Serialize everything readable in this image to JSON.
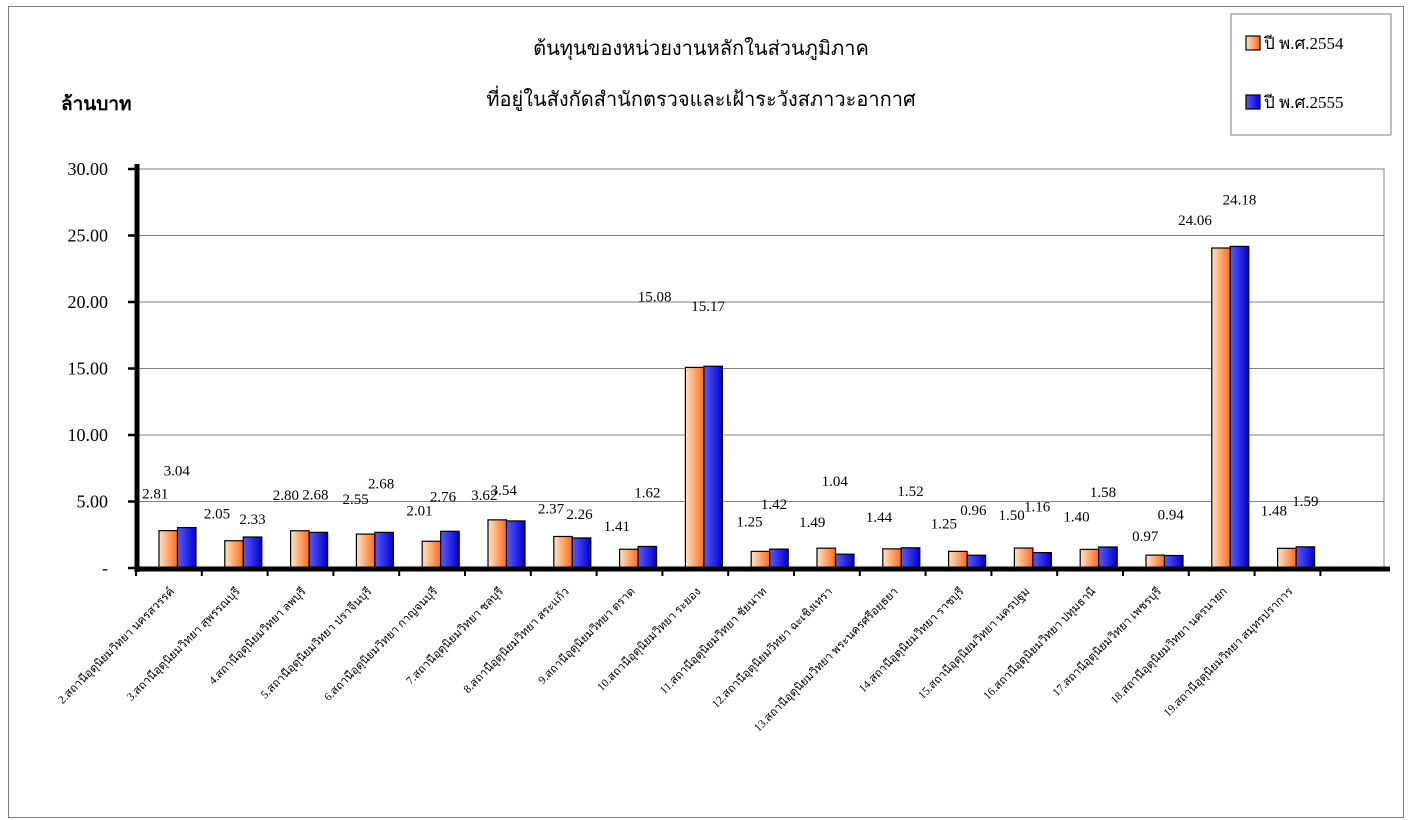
{
  "chart_data": {
    "type": "bar",
    "title": [
      "ต้นทุนของหน่วยงานหลักในส่วนภูมิภาค",
      "ที่อยู่ในสังกัดสำนักตรวจและเฝ้าระวังสภาวะอากาศ"
    ],
    "ylabel": "ล้านบาท",
    "xlabel": "",
    "ylim": [
      0,
      30
    ],
    "yticks": [
      0,
      5,
      10,
      15,
      20,
      25,
      30
    ],
    "ytick_labels": [
      "-",
      "5.00",
      "10.00",
      "15.00",
      "20.00",
      "25.00",
      "30.00"
    ],
    "grid": true,
    "legend_position": "top-right",
    "categories": [
      "2.สถานีอุตุนิยมวิทยา นครสวรรค์",
      "3.สถานีอุตุนิยมวิทยา สุพรรณบุรี",
      "4.สถานีอุตุนิยมวิทยา ลพบุรี",
      "5.สถานีอุตุนิยมวิทยา ปราจีนบุรี",
      "6.สถานีอุตุนิยมวิทยา กาญจนบุรี",
      "7.สถานีอุตุนิยมวิทยา ชลบุรี",
      "8.สถานีอุตุนิยมวิทยา สระแก้ว",
      "9.สถานีอุตุนิยมวิทยา ตราด",
      "10.สถานีอุตุนิยมวิทยา ระยอง",
      "11.สถานีอุตุนิยมวิทยา ชัยนาท",
      "12.สถานีอุตุนิยมวิทยา ฉะเชิงเทรา",
      "13.สถานีอุตุนิยมวิทยา พระนครศรีอยุธยา",
      "14.สถานีอุตุนิยมวิทยา ราชบุรี",
      "15.สถานีอุตุนิยมวิทยา นครปฐม",
      "16.สถานีอุตุนิยมวิทยา ปทุมธานี",
      "17.สถานีอุตุนิยมวิทยา เพชรบุรี",
      "18.สถานีอุตุนิยมวิทยา นครนายก",
      "19.สถานีอุตุนิยมวิทยา สมุทรปราการ"
    ],
    "series": [
      {
        "name": "ปี พ.ศ.2554",
        "values": [
          2.81,
          2.05,
          2.8,
          2.55,
          2.01,
          3.62,
          2.37,
          1.41,
          15.08,
          1.25,
          1.49,
          1.44,
          1.25,
          1.5,
          1.4,
          0.97,
          24.06,
          1.48
        ],
        "labels": [
          "2.81",
          "2.05",
          "2.80",
          "2.55",
          "2.01",
          "3.62",
          "2.37",
          "1.41",
          "15.08",
          "1.25",
          "1.49",
          "1.44",
          "1.25",
          "1.50",
          "1.40",
          "0.97",
          "24.06",
          "1.48"
        ],
        "color_light": "#FFE3C2",
        "color_dark": "#FF6A1A"
      },
      {
        "name": "ปี พ.ศ.2555",
        "values": [
          3.04,
          2.33,
          2.68,
          2.68,
          2.76,
          3.54,
          2.26,
          1.62,
          15.17,
          1.42,
          1.04,
          1.52,
          0.96,
          1.16,
          1.58,
          0.94,
          24.18,
          1.59
        ],
        "labels": [
          "3.04",
          "2.33",
          "2.68",
          "2.68",
          "2.76",
          "3.54",
          "2.26",
          "1.62",
          "15.17",
          "1.42",
          "1.04",
          "1.52",
          "0.96",
          "1.16",
          "1.58",
          "0.94",
          "24.18",
          "1.59"
        ],
        "color_light": "#5A5AFF",
        "color_dark": "#0000CC"
      }
    ]
  }
}
